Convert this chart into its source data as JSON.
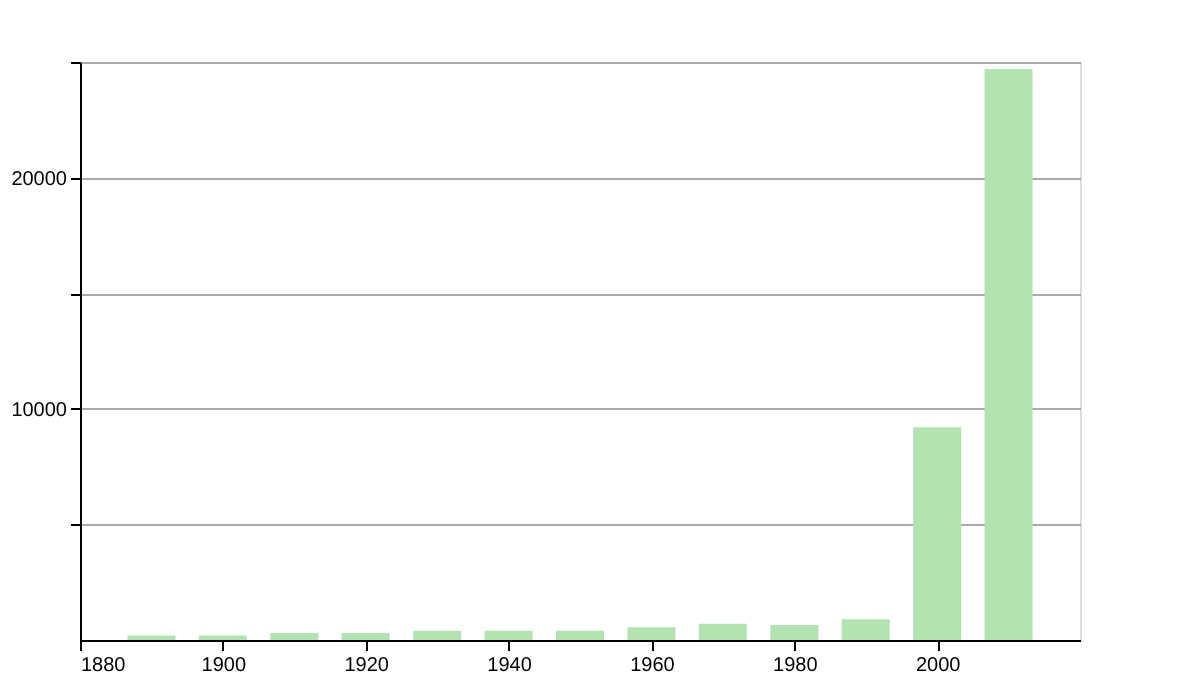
{
  "chart_data": {
    "type": "bar",
    "x": [
      1890,
      1900,
      1910,
      1920,
      1930,
      1940,
      1950,
      1960,
      1970,
      1980,
      1990,
      2000,
      2010
    ],
    "values": [
      200,
      200,
      300,
      300,
      400,
      400,
      400,
      550,
      700,
      650,
      900,
      9200,
      24700
    ],
    "color": "#b3e3b0",
    "xlim": [
      1880,
      2020
    ],
    "xticks": [
      1880,
      1900,
      1920,
      1940,
      1960,
      1980,
      2000
    ],
    "ylim": [
      0,
      25000
    ],
    "yticks": [
      {
        "value": 5000,
        "label": null
      },
      10000,
      {
        "value": 15000,
        "label": null
      },
      20000,
      {
        "value": 25000,
        "label": null
      }
    ],
    "grid": "y"
  }
}
